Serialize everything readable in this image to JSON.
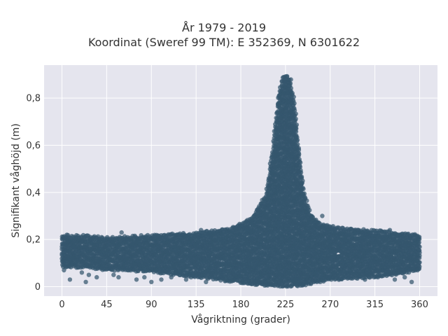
{
  "chart_data": {
    "type": "scatter",
    "title_line1": "År 1979 - 2019",
    "title_line2": "Koordinat (Sweref 99 TM): E 352369, N 6301622",
    "xlabel": "Vågriktning (grader)",
    "ylabel": "Signifikant våghöjd (m)",
    "xlim": [
      -18,
      378
    ],
    "ylim": [
      -0.04,
      0.94
    ],
    "xticks": [
      0,
      45,
      90,
      135,
      180,
      225,
      270,
      315,
      360
    ],
    "xtick_labels": [
      "0",
      "45",
      "90",
      "135",
      "180",
      "225",
      "270",
      "315",
      "360"
    ],
    "yticks": [
      0,
      0.2,
      0.4,
      0.6,
      0.8
    ],
    "ytick_labels": [
      "0",
      "0,2",
      "0,4",
      "0,6",
      "0,8"
    ],
    "grid": true,
    "marker_color": "#34566e",
    "background_color": "#e5e5ee",
    "grid_color": "#ffffff",
    "density_profile": {
      "direction": [
        0,
        20,
        45,
        90,
        135,
        170,
        190,
        205,
        212,
        218,
        222,
        226,
        230,
        234,
        238,
        243,
        250,
        260,
        280,
        315,
        340,
        360
      ],
      "max_height": [
        0.22,
        0.22,
        0.21,
        0.22,
        0.23,
        0.25,
        0.29,
        0.39,
        0.58,
        0.82,
        0.89,
        0.9,
        0.88,
        0.78,
        0.6,
        0.42,
        0.31,
        0.27,
        0.25,
        0.24,
        0.23,
        0.22
      ],
      "min_height": [
        0.08,
        0.08,
        0.07,
        0.06,
        0.04,
        0.02,
        0.01,
        0.0,
        0.0,
        0.0,
        0.0,
        0.0,
        0.0,
        0.0,
        0.0,
        0.0,
        0.01,
        0.02,
        0.03,
        0.04,
        0.05,
        0.07
      ]
    },
    "outliers": [
      [
        2,
        0.07
      ],
      [
        8,
        0.03
      ],
      [
        20,
        0.06
      ],
      [
        24,
        0.02
      ],
      [
        27,
        0.05
      ],
      [
        35,
        0.04
      ],
      [
        40,
        0.08
      ],
      [
        52,
        0.05
      ],
      [
        57,
        0.04
      ],
      [
        75,
        0.03
      ],
      [
        83,
        0.04
      ],
      [
        90,
        0.02
      ],
      [
        100,
        0.03
      ],
      [
        110,
        0.04
      ],
      [
        125,
        0.03
      ],
      [
        130,
        0.04
      ],
      [
        145,
        0.02
      ],
      [
        210,
        0.31
      ],
      [
        305,
        0.03
      ],
      [
        318,
        0.04
      ],
      [
        335,
        0.03
      ],
      [
        345,
        0.04
      ],
      [
        352,
        0.02
      ],
      [
        358,
        0.07
      ],
      [
        5,
        0.22
      ],
      [
        60,
        0.23
      ],
      [
        140,
        0.24
      ],
      [
        330,
        0.24
      ],
      [
        262,
        0.3
      ]
    ]
  }
}
